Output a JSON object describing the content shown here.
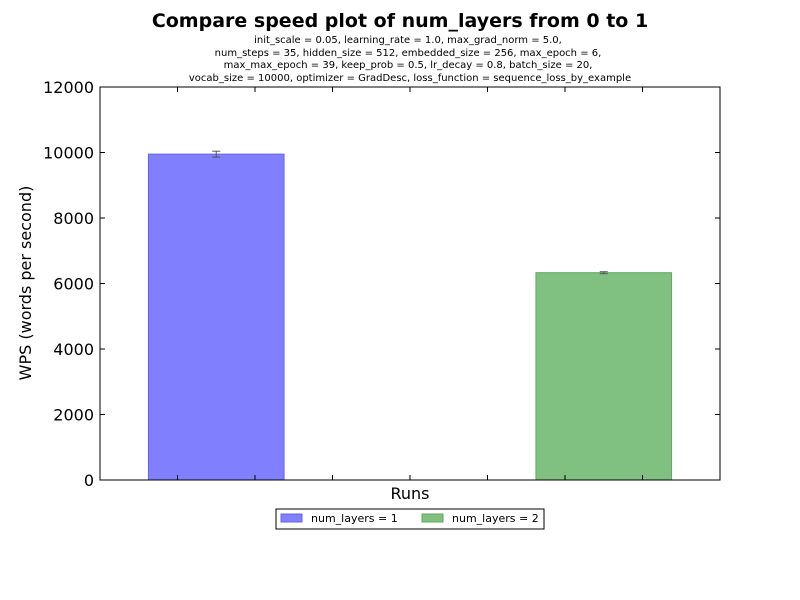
{
  "chart_data": {
    "type": "bar",
    "title": "Compare speed plot of num_layers from 0 to 1",
    "subtitle_lines": [
      "init_scale = 0.05, learning_rate = 1.0, max_grad_norm = 5.0,",
      "num_steps = 35, hidden_size = 512, embedded_size = 256, max_epoch = 6,",
      "max_max_epoch = 39, keep_prob = 0.5, lr_decay = 0.8, batch_size = 20,",
      "vocab_size = 10000, optimizer = GradDesc, loss_function = sequence_loss_by_example"
    ],
    "xlabel": "Runs",
    "ylabel": "WPS (words per second)",
    "ylim": [
      0,
      12000
    ],
    "yticks": [
      0,
      2000,
      4000,
      6000,
      8000,
      10000,
      12000
    ],
    "xlim": [
      0,
      8
    ],
    "xticks_count": 8,
    "grid": false,
    "legend_position": "bottom-center",
    "series": [
      {
        "name": "num_layers = 1",
        "x_start": 0.625,
        "x_end": 2.375,
        "value": 9950,
        "error": 90,
        "color": "#8080ff",
        "edge_color": "#6464e6"
      },
      {
        "name": "num_layers = 2",
        "x_start": 5.625,
        "x_end": 7.375,
        "value": 6330,
        "error": 30,
        "color": "#80c080",
        "edge_color": "#60a860"
      }
    ]
  }
}
